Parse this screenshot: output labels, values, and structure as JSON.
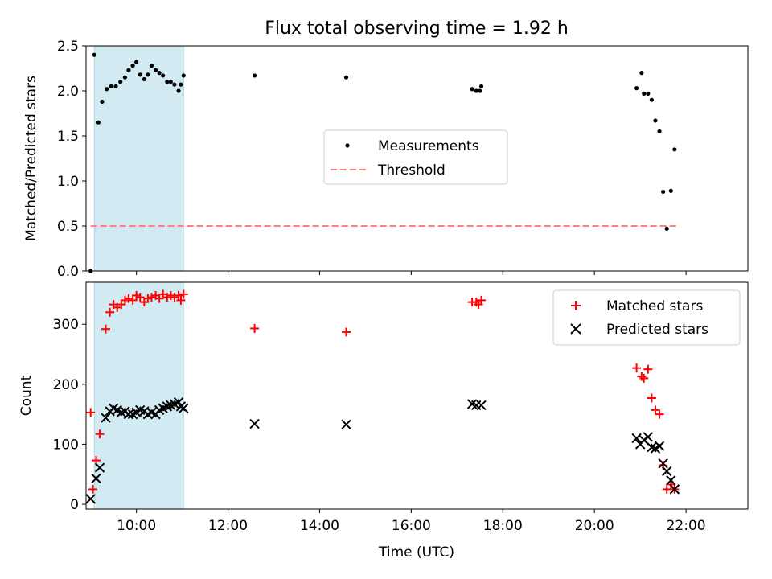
{
  "figure": {
    "title": "Flux total observing time = 1.92 h",
    "shaded_interval_hours": [
      9.08,
      11.03
    ],
    "shade_color": "#add8e6"
  },
  "chart_data": [
    {
      "id": "ratio",
      "type": "scatter",
      "xlabel": "",
      "ylabel": "Matched/Predicted stars",
      "xlim_hours": [
        8.9,
        23.35
      ],
      "ylim": [
        0,
        2.5
      ],
      "yticks": [
        0,
        0.5,
        1.0,
        1.5,
        2.0,
        2.5
      ],
      "ytick_labels": [
        "0.0",
        "0.5",
        "1.0",
        "1.5",
        "2.0",
        "2.5"
      ],
      "legend": {
        "placement": "center",
        "entries": [
          {
            "label": "Measurements",
            "kind": "dot",
            "color": "#000000"
          },
          {
            "label": "Threshold",
            "kind": "dashed-line",
            "color": "#ff8080"
          }
        ]
      },
      "threshold": {
        "y": 0.5,
        "x_range_hours": [
          9.0,
          21.8
        ],
        "color": "#ff7f7f"
      },
      "series": [
        {
          "name": "Measurements",
          "color": "#000000",
          "points": [
            [
              9.0,
              0.0
            ],
            [
              9.08,
              2.4
            ],
            [
              9.17,
              1.65
            ],
            [
              9.25,
              1.88
            ],
            [
              9.35,
              2.02
            ],
            [
              9.45,
              2.05
            ],
            [
              9.55,
              2.05
            ],
            [
              9.65,
              2.1
            ],
            [
              9.75,
              2.15
            ],
            [
              9.83,
              2.23
            ],
            [
              9.92,
              2.28
            ],
            [
              10.0,
              2.32
            ],
            [
              10.08,
              2.18
            ],
            [
              10.17,
              2.13
            ],
            [
              10.25,
              2.18
            ],
            [
              10.33,
              2.28
            ],
            [
              10.42,
              2.23
            ],
            [
              10.5,
              2.2
            ],
            [
              10.58,
              2.17
            ],
            [
              10.67,
              2.1
            ],
            [
              10.75,
              2.1
            ],
            [
              10.83,
              2.07
            ],
            [
              10.92,
              2.0
            ],
            [
              10.97,
              2.07
            ],
            [
              11.03,
              2.17
            ],
            [
              12.58,
              2.17
            ],
            [
              14.58,
              2.15
            ],
            [
              17.33,
              2.02
            ],
            [
              17.42,
              2.0
            ],
            [
              17.5,
              2.0
            ],
            [
              17.53,
              2.05
            ],
            [
              20.92,
              2.03
            ],
            [
              21.03,
              2.2
            ],
            [
              21.08,
              1.97
            ],
            [
              21.17,
              1.97
            ],
            [
              21.25,
              1.9
            ],
            [
              21.33,
              1.67
            ],
            [
              21.42,
              1.55
            ],
            [
              21.5,
              0.88
            ],
            [
              21.58,
              0.47
            ],
            [
              21.67,
              0.89
            ],
            [
              21.75,
              1.35
            ]
          ]
        }
      ]
    },
    {
      "id": "counts",
      "type": "scatter",
      "xlabel": "Time (UTC)",
      "ylabel": "Count",
      "xlim_hours": [
        8.9,
        23.35
      ],
      "ylim": [
        -8,
        370
      ],
      "yticks": [
        0,
        100,
        200,
        300
      ],
      "ytick_labels": [
        "0",
        "100",
        "200",
        "300"
      ],
      "xticks_hours": [
        10,
        12,
        14,
        16,
        18,
        20,
        22
      ],
      "xtick_labels": [
        "10:00",
        "12:00",
        "14:00",
        "16:00",
        "18:00",
        "20:00",
        "22:00"
      ],
      "legend": {
        "placement": "top-right",
        "entries": [
          {
            "label": "Matched stars",
            "kind": "plus",
            "color": "#ff0000"
          },
          {
            "label": "Predicted stars",
            "kind": "cross",
            "color": "#000000"
          }
        ]
      },
      "series": [
        {
          "name": "Matched stars",
          "marker": "plus",
          "color": "#ff0000",
          "points": [
            [
              9.0,
              153
            ],
            [
              9.05,
              25
            ],
            [
              9.12,
              73
            ],
            [
              9.2,
              117
            ],
            [
              9.33,
              292
            ],
            [
              9.42,
              320
            ],
            [
              9.5,
              333
            ],
            [
              9.58,
              328
            ],
            [
              9.67,
              333
            ],
            [
              9.75,
              340
            ],
            [
              9.83,
              343
            ],
            [
              9.92,
              340
            ],
            [
              10.0,
              348
            ],
            [
              10.08,
              345
            ],
            [
              10.17,
              337
            ],
            [
              10.25,
              343
            ],
            [
              10.33,
              345
            ],
            [
              10.42,
              348
            ],
            [
              10.5,
              343
            ],
            [
              10.58,
              350
            ],
            [
              10.67,
              345
            ],
            [
              10.75,
              348
            ],
            [
              10.83,
              345
            ],
            [
              10.92,
              348
            ],
            [
              10.97,
              340
            ],
            [
              11.03,
              350
            ],
            [
              12.58,
              293
            ],
            [
              14.58,
              287
            ],
            [
              17.33,
              337
            ],
            [
              17.42,
              337
            ],
            [
              17.47,
              333
            ],
            [
              17.53,
              340
            ],
            [
              20.92,
              227
            ],
            [
              21.03,
              213
            ],
            [
              21.08,
              210
            ],
            [
              21.17,
              225
            ],
            [
              21.25,
              177
            ],
            [
              21.33,
              157
            ],
            [
              21.42,
              150
            ],
            [
              21.5,
              65
            ],
            [
              21.58,
              25
            ],
            [
              21.67,
              33
            ],
            [
              21.75,
              25
            ]
          ]
        },
        {
          "name": "Predicted stars",
          "marker": "cross",
          "color": "#000000",
          "points": [
            [
              9.0,
              9
            ],
            [
              9.12,
              43
            ],
            [
              9.2,
              61
            ],
            [
              9.33,
              144
            ],
            [
              9.42,
              155
            ],
            [
              9.5,
              160
            ],
            [
              9.58,
              157
            ],
            [
              9.67,
              153
            ],
            [
              9.75,
              155
            ],
            [
              9.83,
              150
            ],
            [
              9.92,
              150
            ],
            [
              10.0,
              153
            ],
            [
              10.08,
              157
            ],
            [
              10.17,
              155
            ],
            [
              10.25,
              150
            ],
            [
              10.33,
              153
            ],
            [
              10.42,
              150
            ],
            [
              10.5,
              157
            ],
            [
              10.58,
              160
            ],
            [
              10.67,
              163
            ],
            [
              10.75,
              165
            ],
            [
              10.83,
              167
            ],
            [
              10.92,
              170
            ],
            [
              10.97,
              163
            ],
            [
              11.03,
              160
            ],
            [
              12.58,
              134
            ],
            [
              14.58,
              133
            ],
            [
              17.33,
              167
            ],
            [
              17.42,
              165
            ],
            [
              17.53,
              165
            ],
            [
              20.92,
              110
            ],
            [
              21.0,
              100
            ],
            [
              21.08,
              107
            ],
            [
              21.17,
              112
            ],
            [
              21.25,
              95
            ],
            [
              21.33,
              93
            ],
            [
              21.42,
              97
            ],
            [
              21.5,
              68
            ],
            [
              21.58,
              55
            ],
            [
              21.67,
              40
            ],
            [
              21.75,
              25
            ]
          ]
        }
      ]
    }
  ]
}
